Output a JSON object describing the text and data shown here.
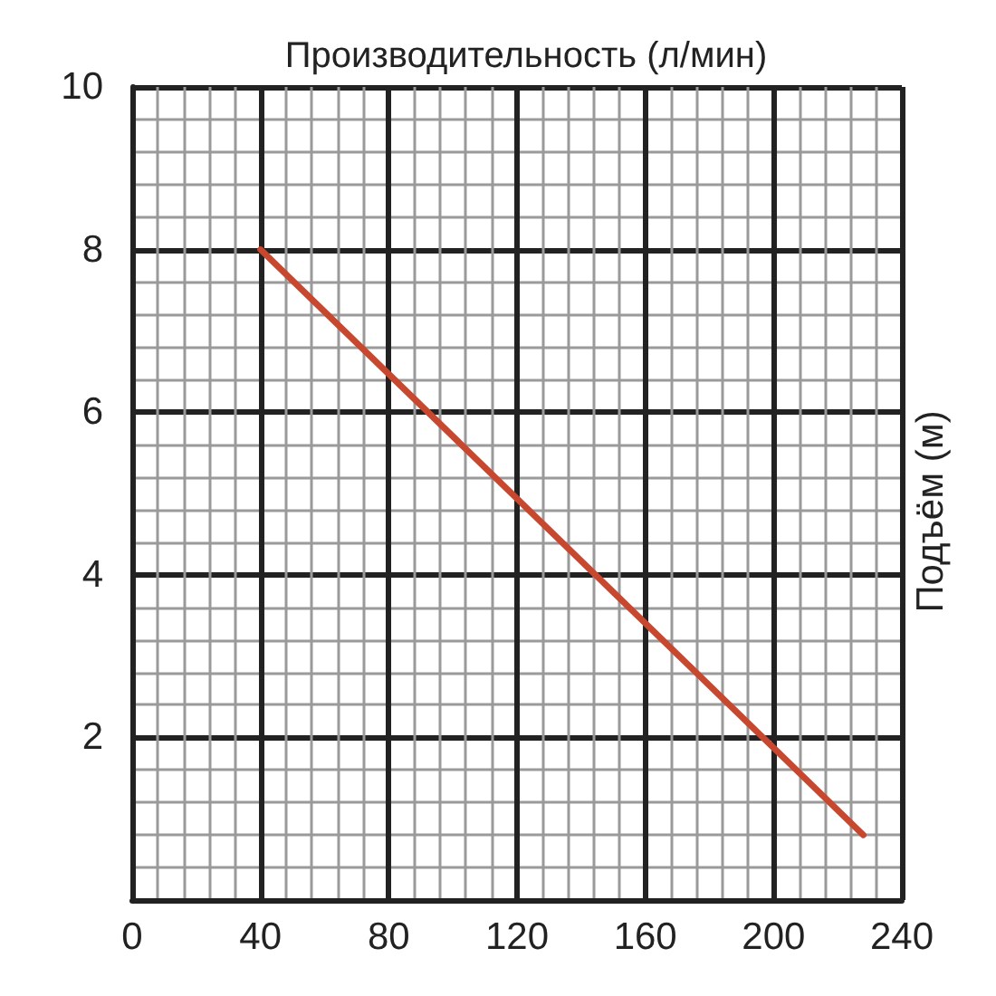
{
  "chart_data": {
    "type": "line",
    "xlabel": "Производительность (л/мин)",
    "ylabel": "Подъём (м)",
    "x": [
      40,
      228
    ],
    "series": [
      {
        "color": "#c8472f",
        "values": [
          8,
          0.8
        ]
      }
    ],
    "xlim": [
      0,
      240
    ],
    "ylim": [
      0,
      10
    ],
    "xticks": [
      0,
      40,
      80,
      120,
      160,
      200,
      240
    ],
    "yticks": [
      {
        "value": 0,
        "label": null
      },
      2,
      4,
      6,
      8,
      10
    ],
    "grid": true,
    "marker": "none",
    "line_style": "solid"
  }
}
